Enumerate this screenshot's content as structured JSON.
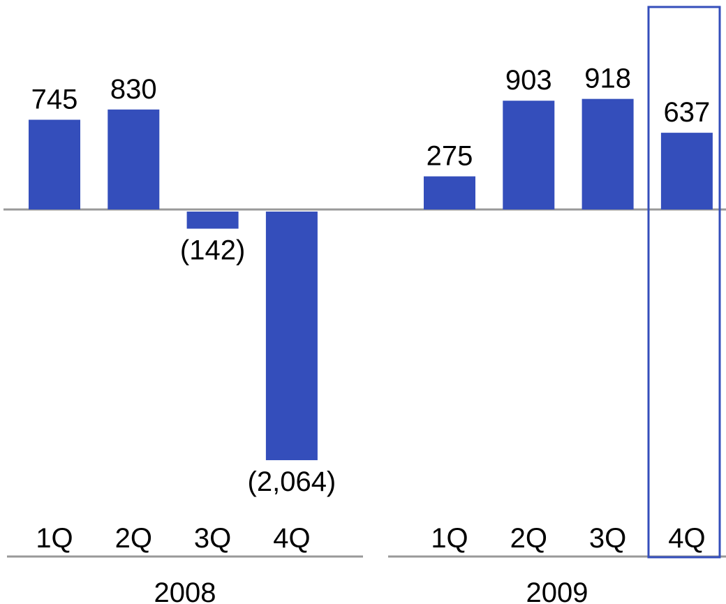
{
  "chart_data": {
    "type": "bar",
    "groups": [
      {
        "label": "2008",
        "categories": [
          "1Q",
          "2Q",
          "3Q",
          "4Q"
        ],
        "values": [
          745,
          830,
          -142,
          -2064
        ],
        "value_labels": [
          "745",
          "830",
          "(142)",
          "(2,064)"
        ]
      },
      {
        "label": "2009",
        "categories": [
          "1Q",
          "2Q",
          "3Q",
          "4Q"
        ],
        "values": [
          275,
          903,
          918,
          637
        ],
        "value_labels": [
          "275",
          "903",
          "918",
          "637"
        ]
      }
    ],
    "highlight": {
      "group": "2009",
      "category": "4Q"
    },
    "colors": {
      "bar": "#344EBB",
      "highlight_box": "#344EBB",
      "axis": "#999999",
      "text": "#000000"
    },
    "ylim": [
      -2064,
      918
    ],
    "grid": false,
    "legend": "none",
    "title": "",
    "xlabel": "",
    "ylabel": ""
  }
}
